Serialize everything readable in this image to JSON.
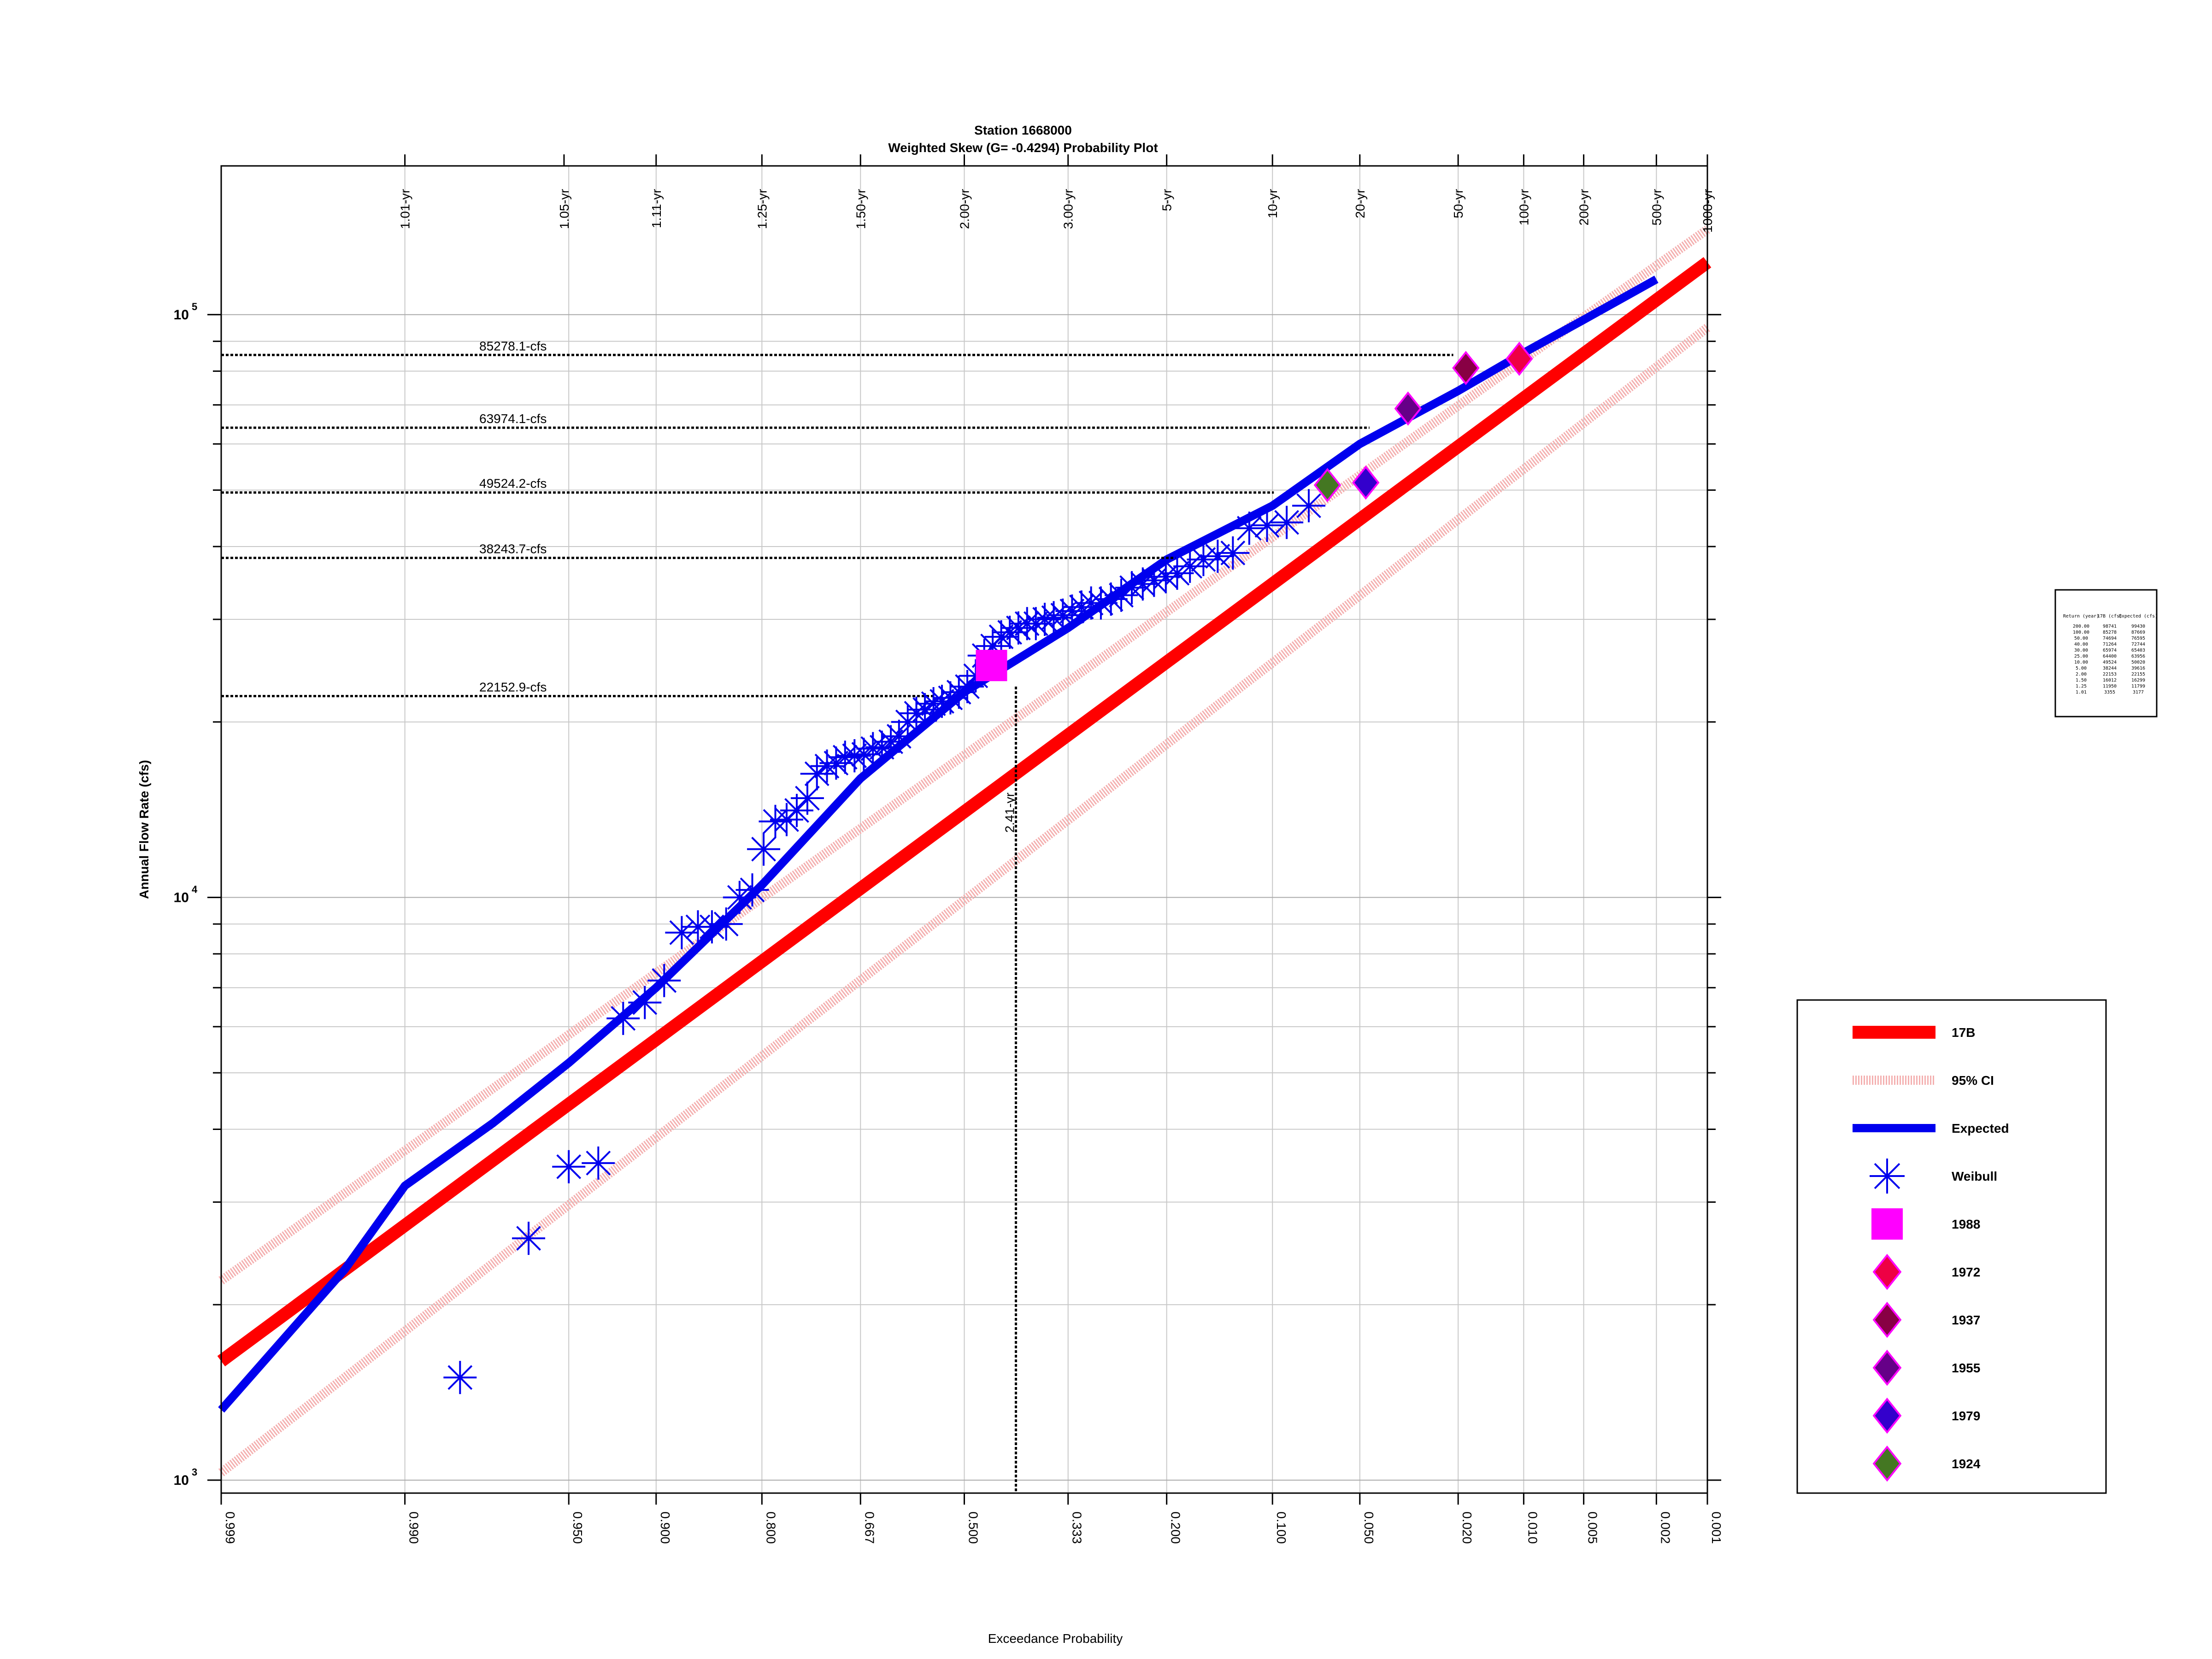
{
  "chart_data": {
    "type": "scatter",
    "title": "Station 1668000",
    "subtitle": "Weighted Skew (G= -0.4294) Probability Plot",
    "xlabel": "Exceedance Probability",
    "ylabel": "Annual Flow Rate (cfs)",
    "x_scale": "normal-probability (reversed)",
    "y_scale": "log",
    "xlim": [
      0.999,
      0.001
    ],
    "ylim": [
      950,
      180000
    ],
    "grid": true,
    "legend_position": "right",
    "x_ticks": [
      "0.999",
      "0.990",
      "0.950",
      "0.900",
      "0.800",
      "0.667",
      "0.500",
      "0.333",
      "0.200",
      "0.100",
      "0.050",
      "0.020",
      "0.010",
      "0.005",
      "0.002",
      "0.001"
    ],
    "x_tick_values": [
      0.999,
      0.99,
      0.95,
      0.9,
      0.8,
      0.667,
      0.5,
      0.333,
      0.2,
      0.1,
      0.05,
      0.02,
      0.01,
      0.005,
      0.002,
      0.001
    ],
    "top_ticks": [
      "1.01-yr",
      "1.05-yr",
      "1.11-yr",
      "1.25-yr",
      "1.50-yr",
      "2.00-yr",
      "3.00-yr",
      "5-yr",
      "10-yr",
      "20-yr",
      "50-yr",
      "100-yr",
      "200-yr",
      "500-yr",
      "1000-yr"
    ],
    "top_tick_values": [
      0.99,
      0.952,
      0.9,
      0.8,
      0.667,
      0.5,
      0.333,
      0.2,
      0.1,
      0.05,
      0.02,
      0.01,
      0.005,
      0.002,
      0.001
    ],
    "y_ticks": [
      {
        "value": 1000,
        "base": "10",
        "exp": "3"
      },
      {
        "value": 10000,
        "base": "10",
        "exp": "4"
      },
      {
        "value": 100000,
        "base": "10",
        "exp": "5"
      }
    ],
    "reference_lines": [
      {
        "label": "85278.1-cfs",
        "value": 85278.1,
        "x_end": 0.021
      },
      {
        "label": "63974.1-cfs",
        "value": 63974.1,
        "x_end": 0.046
      },
      {
        "label": "49524.2-cfs",
        "value": 49524.2,
        "x_end": 0.099
      },
      {
        "label": "38243.7-cfs",
        "value": 38243.7,
        "x_end": 0.19
      },
      {
        "label": "22152.9-cfs",
        "value": 22152.9,
        "x_end": 0.55
      }
    ],
    "marker_line": {
      "label": "2.41-yr",
      "x": 0.415,
      "y_top": 23000
    },
    "series": [
      {
        "name": "17B",
        "kind": "line",
        "color": "#ff0000",
        "x": [
          0.999,
          0.001
        ],
        "y": [
          1600,
          123000
        ]
      },
      {
        "name": "95% CI",
        "kind": "band",
        "color": "#f4b0b0",
        "upper": {
          "x": [
            0.999,
            0.001
          ],
          "y": [
            2200,
            140000
          ]
        },
        "lower": {
          "x": [
            0.999,
            0.001
          ],
          "y": [
            1030,
            95000
          ]
        }
      },
      {
        "name": "Expected",
        "kind": "line",
        "color": "#0000ee",
        "x": [
          0.999,
          0.995,
          0.99,
          0.975,
          0.95,
          0.9,
          0.8,
          0.667,
          0.5,
          0.333,
          0.2,
          0.1,
          0.05,
          0.02,
          0.01,
          0.005,
          0.002
        ],
        "y": [
          1320,
          2300,
          3200,
          4100,
          5200,
          7000,
          10500,
          16000,
          22500,
          29000,
          38000,
          47000,
          60000,
          74000,
          86000,
          98000,
          115000
        ]
      },
      {
        "name": "Weibull",
        "kind": "scatter",
        "color": "#0000ee",
        "marker": "asterisk",
        "x": [
          0.982,
          0.965,
          0.95,
          0.936,
          0.922,
          0.908,
          0.894,
          0.88,
          0.866,
          0.853,
          0.839,
          0.825,
          0.811,
          0.798,
          0.784,
          0.77,
          0.757,
          0.743,
          0.73,
          0.716,
          0.703,
          0.69,
          0.676,
          0.662,
          0.648,
          0.634,
          0.62,
          0.607,
          0.593,
          0.579,
          0.565,
          0.551,
          0.537,
          0.523,
          0.509,
          0.495,
          0.481,
          0.467,
          0.453,
          0.439,
          0.425,
          0.411,
          0.397,
          0.383,
          0.369,
          0.355,
          0.341,
          0.327,
          0.313,
          0.299,
          0.285,
          0.271,
          0.257,
          0.243,
          0.229,
          0.215,
          0.201,
          0.188,
          0.174,
          0.16,
          0.146,
          0.132,
          0.118,
          0.104,
          0.09,
          0.076
        ],
        "y": [
          1500,
          2600,
          3450,
          3500,
          6200,
          6600,
          7200,
          8700,
          8900,
          8900,
          9000,
          10000,
          10300,
          12100,
          13500,
          13600,
          14100,
          14800,
          16300,
          16800,
          17000,
          17400,
          17500,
          17600,
          18000,
          18100,
          18500,
          18900,
          20000,
          20700,
          21000,
          21500,
          21700,
          22000,
          22500,
          23000,
          24000,
          26000,
          27000,
          28000,
          28500,
          29000,
          29500,
          29500,
          30000,
          30200,
          30500,
          31000,
          31500,
          32000,
          32000,
          32500,
          33000,
          34000,
          34500,
          35000,
          35500,
          36000,
          37000,
          38000,
          38500,
          39000,
          43000,
          43500,
          44000,
          47000
        ]
      },
      {
        "name": "1988",
        "kind": "point",
        "color": "#ff00ff",
        "marker": "square",
        "x": [
          0.455
        ],
        "y": [
          25000
        ]
      },
      {
        "name": "1972",
        "kind": "point",
        "color": "#ee0044",
        "marker": "diamond",
        "x": [
          0.0105
        ],
        "y": [
          84000
        ]
      },
      {
        "name": "1937",
        "kind": "point",
        "color": "#880044",
        "marker": "diamond",
        "x": [
          0.0185
        ],
        "y": [
          81000
        ]
      },
      {
        "name": "1955",
        "kind": "point",
        "color": "#660088",
        "marker": "diamond",
        "x": [
          0.0325
        ],
        "y": [
          69000
        ]
      },
      {
        "name": "1979",
        "kind": "point",
        "color": "#3300cc",
        "marker": "diamond",
        "x": [
          0.0475
        ],
        "y": [
          51500
        ]
      },
      {
        "name": "1924",
        "kind": "point",
        "color": "#447722",
        "marker": "diamond",
        "x": [
          0.0655
        ],
        "y": [
          51000
        ]
      }
    ],
    "legend": [
      "17B",
      "95% CI",
      "Expected",
      "Weibull",
      "1988",
      "1972",
      "1937",
      "1955",
      "1979",
      "1924"
    ],
    "inset_table": {
      "headers": [
        "Return (year)",
        "17B (cfs)",
        "Expected (cfs)"
      ],
      "rows": [
        [
          "200.00",
          "98741",
          "99430"
        ],
        [
          "100.00",
          "85278",
          "87669"
        ],
        [
          "50.00",
          "74694",
          "76595"
        ],
        [
          "40.00",
          "71264",
          "72744"
        ],
        [
          "30.00",
          "65974",
          "65403"
        ],
        [
          "25.00",
          "64400",
          "63956"
        ],
        [
          "10.00",
          "49524",
          "50020"
        ],
        [
          "5.00",
          "38244",
          "39616"
        ],
        [
          "2.00",
          "22153",
          "22155"
        ],
        [
          "1.50",
          "16012",
          "16299"
        ],
        [
          "1.25",
          "11950",
          "11799"
        ],
        [
          "1.01",
          "3355",
          "3177"
        ]
      ]
    }
  }
}
